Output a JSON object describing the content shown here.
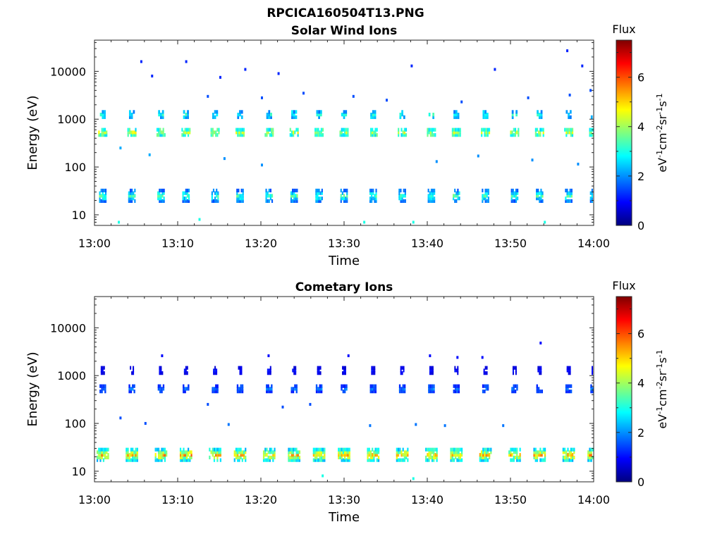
{
  "page": {
    "filename": "RPCICA160504T13.PNG"
  },
  "colors": {
    "jet_stops": [
      "#00007f",
      "#0000ff",
      "#007fff",
      "#00ffff",
      "#7fff7f",
      "#ffff00",
      "#ff7f00",
      "#ff0000",
      "#7f0000"
    ]
  },
  "chart_data": [
    {
      "type": "heatmap",
      "title": "Solar Wind Ions",
      "xlabel": "Time",
      "ylabel": "Energy (eV)",
      "yscale": "log",
      "xlim": [
        "13:00",
        "14:00"
      ],
      "ylim": [
        6,
        45000
      ],
      "x_ticks": [
        "13:00",
        "13:10",
        "13:20",
        "13:30",
        "13:40",
        "13:50",
        "14:00"
      ],
      "y_ticks": [
        "10",
        "100",
        "1000",
        "10000"
      ],
      "colorbar": {
        "label_title": "Flux",
        "unit_main": "eV",
        "unit_s1": "-1",
        "unit_cm": "cm",
        "unit_s2": "-2",
        "unit_sr": "sr",
        "unit_s3": "-1",
        "unit_s": "s",
        "unit_s4": "-1",
        "range": [
          0,
          7.5
        ],
        "ticks": [
          "0",
          "2",
          "4",
          "6"
        ]
      },
      "bands": [
        {
          "center_eV": 530,
          "flux": 4.2,
          "duration_min": 1.1
        },
        {
          "center_eV": 1250,
          "flux": 3.0,
          "duration_min": 0.7
        },
        {
          "center_eV": 25,
          "flux": 3.4,
          "duration_min": 0.9
        }
      ],
      "sweep_starts_min": [
        1,
        4.5,
        8,
        11,
        14.5,
        17.5,
        21,
        24,
        27,
        30,
        33.5,
        37,
        40.5,
        43.5,
        47,
        50.5,
        53.5,
        57,
        60
      ],
      "scatter": [
        {
          "t": 5.5,
          "e": 16000,
          "flux": 1.2
        },
        {
          "t": 10.9,
          "e": 16000,
          "flux": 1.2
        },
        {
          "t": 56.7,
          "e": 27000,
          "flux": 1.2
        },
        {
          "t": 6.8,
          "e": 8000,
          "flux": 1.2
        },
        {
          "t": 15,
          "e": 7500,
          "flux": 1.2
        },
        {
          "t": 18,
          "e": 11000,
          "flux": 1.2
        },
        {
          "t": 22,
          "e": 9000,
          "flux": 1.2
        },
        {
          "t": 38,
          "e": 13000,
          "flux": 1.2
        },
        {
          "t": 48,
          "e": 11000,
          "flux": 1.2
        },
        {
          "t": 58.5,
          "e": 13000,
          "flux": 1.2
        },
        {
          "t": 13.5,
          "e": 3000,
          "flux": 1.5
        },
        {
          "t": 20,
          "e": 2800,
          "flux": 1.5
        },
        {
          "t": 25,
          "e": 3500,
          "flux": 1.5
        },
        {
          "t": 31,
          "e": 3000,
          "flux": 1.5
        },
        {
          "t": 35,
          "e": 2500,
          "flux": 1.5
        },
        {
          "t": 44,
          "e": 2300,
          "flux": 1.5
        },
        {
          "t": 52,
          "e": 2800,
          "flux": 1.5
        },
        {
          "t": 57,
          "e": 3200,
          "flux": 1.5
        },
        {
          "t": 59.5,
          "e": 4000,
          "flux": 1.5
        },
        {
          "t": 3,
          "e": 250,
          "flux": 2.2
        },
        {
          "t": 6.5,
          "e": 180,
          "flux": 2.2
        },
        {
          "t": 15.5,
          "e": 150,
          "flux": 2.0
        },
        {
          "t": 20,
          "e": 110,
          "flux": 2.0
        },
        {
          "t": 41,
          "e": 130,
          "flux": 2.0
        },
        {
          "t": 46,
          "e": 170,
          "flux": 2.0
        },
        {
          "t": 52.5,
          "e": 140,
          "flux": 2.0
        },
        {
          "t": 58,
          "e": 115,
          "flux": 2.0
        },
        {
          "t": 2.8,
          "e": 7,
          "flux": 3.0
        },
        {
          "t": 12.5,
          "e": 8,
          "flux": 3.0
        },
        {
          "t": 32.3,
          "e": 7,
          "flux": 3.0
        },
        {
          "t": 38.2,
          "e": 7,
          "flux": 3.0
        },
        {
          "t": 54,
          "e": 7,
          "flux": 3.0
        }
      ]
    },
    {
      "type": "heatmap",
      "title": "Cometary Ions",
      "xlabel": "Time",
      "ylabel": "Energy (eV)",
      "yscale": "log",
      "xlim": [
        "13:00",
        "14:00"
      ],
      "ylim": [
        6,
        45000
      ],
      "x_ticks": [
        "13:00",
        "13:10",
        "13:20",
        "13:30",
        "13:40",
        "13:50",
        "14:00"
      ],
      "y_ticks": [
        "10",
        "100",
        "1000",
        "10000"
      ],
      "colorbar": {
        "label_title": "Flux",
        "unit_main": "eV",
        "unit_s1": "-1",
        "unit_cm": "cm",
        "unit_s2": "-2",
        "unit_sr": "sr",
        "unit_s3": "-1",
        "unit_s": "s",
        "unit_s4": "-1",
        "range": [
          0,
          7.5
        ],
        "ticks": [
          "0",
          "2",
          "4",
          "6"
        ]
      },
      "bands": [
        {
          "center_eV": 22,
          "flux": 5.2,
          "duration_min": 1.5
        },
        {
          "center_eV": 530,
          "flux": 1.8,
          "duration_min": 0.8
        },
        {
          "center_eV": 1280,
          "flux": 1.0,
          "duration_min": 0.5
        }
      ],
      "sweep_starts_min": [
        1,
        4.5,
        8,
        11,
        14.5,
        17.5,
        21,
        24,
        27,
        30,
        33.5,
        37,
        40.5,
        43.5,
        47,
        50.5,
        53.5,
        57,
        60
      ],
      "scatter": [
        {
          "t": 8,
          "e": 2600,
          "flux": 1.0
        },
        {
          "t": 20.8,
          "e": 2600,
          "flux": 1.0
        },
        {
          "t": 30.4,
          "e": 2600,
          "flux": 1.0
        },
        {
          "t": 40.2,
          "e": 2600,
          "flux": 1.0
        },
        {
          "t": 43.5,
          "e": 2400,
          "flux": 1.0
        },
        {
          "t": 46.5,
          "e": 2400,
          "flux": 1.0
        },
        {
          "t": 53.5,
          "e": 4800,
          "flux": 1.0
        },
        {
          "t": 13.5,
          "e": 250,
          "flux": 1.5
        },
        {
          "t": 22.5,
          "e": 220,
          "flux": 1.5
        },
        {
          "t": 25.8,
          "e": 250,
          "flux": 1.5
        },
        {
          "t": 3,
          "e": 130,
          "flux": 1.5
        },
        {
          "t": 6,
          "e": 100,
          "flux": 1.5
        },
        {
          "t": 16,
          "e": 95,
          "flux": 1.8
        },
        {
          "t": 33,
          "e": 90,
          "flux": 1.8
        },
        {
          "t": 38.5,
          "e": 95,
          "flux": 1.8
        },
        {
          "t": 42,
          "e": 90,
          "flux": 1.8
        },
        {
          "t": 49,
          "e": 90,
          "flux": 1.8
        },
        {
          "t": 27.3,
          "e": 8,
          "flux": 3.0
        },
        {
          "t": 38.2,
          "e": 7,
          "flux": 3.0
        }
      ]
    }
  ]
}
